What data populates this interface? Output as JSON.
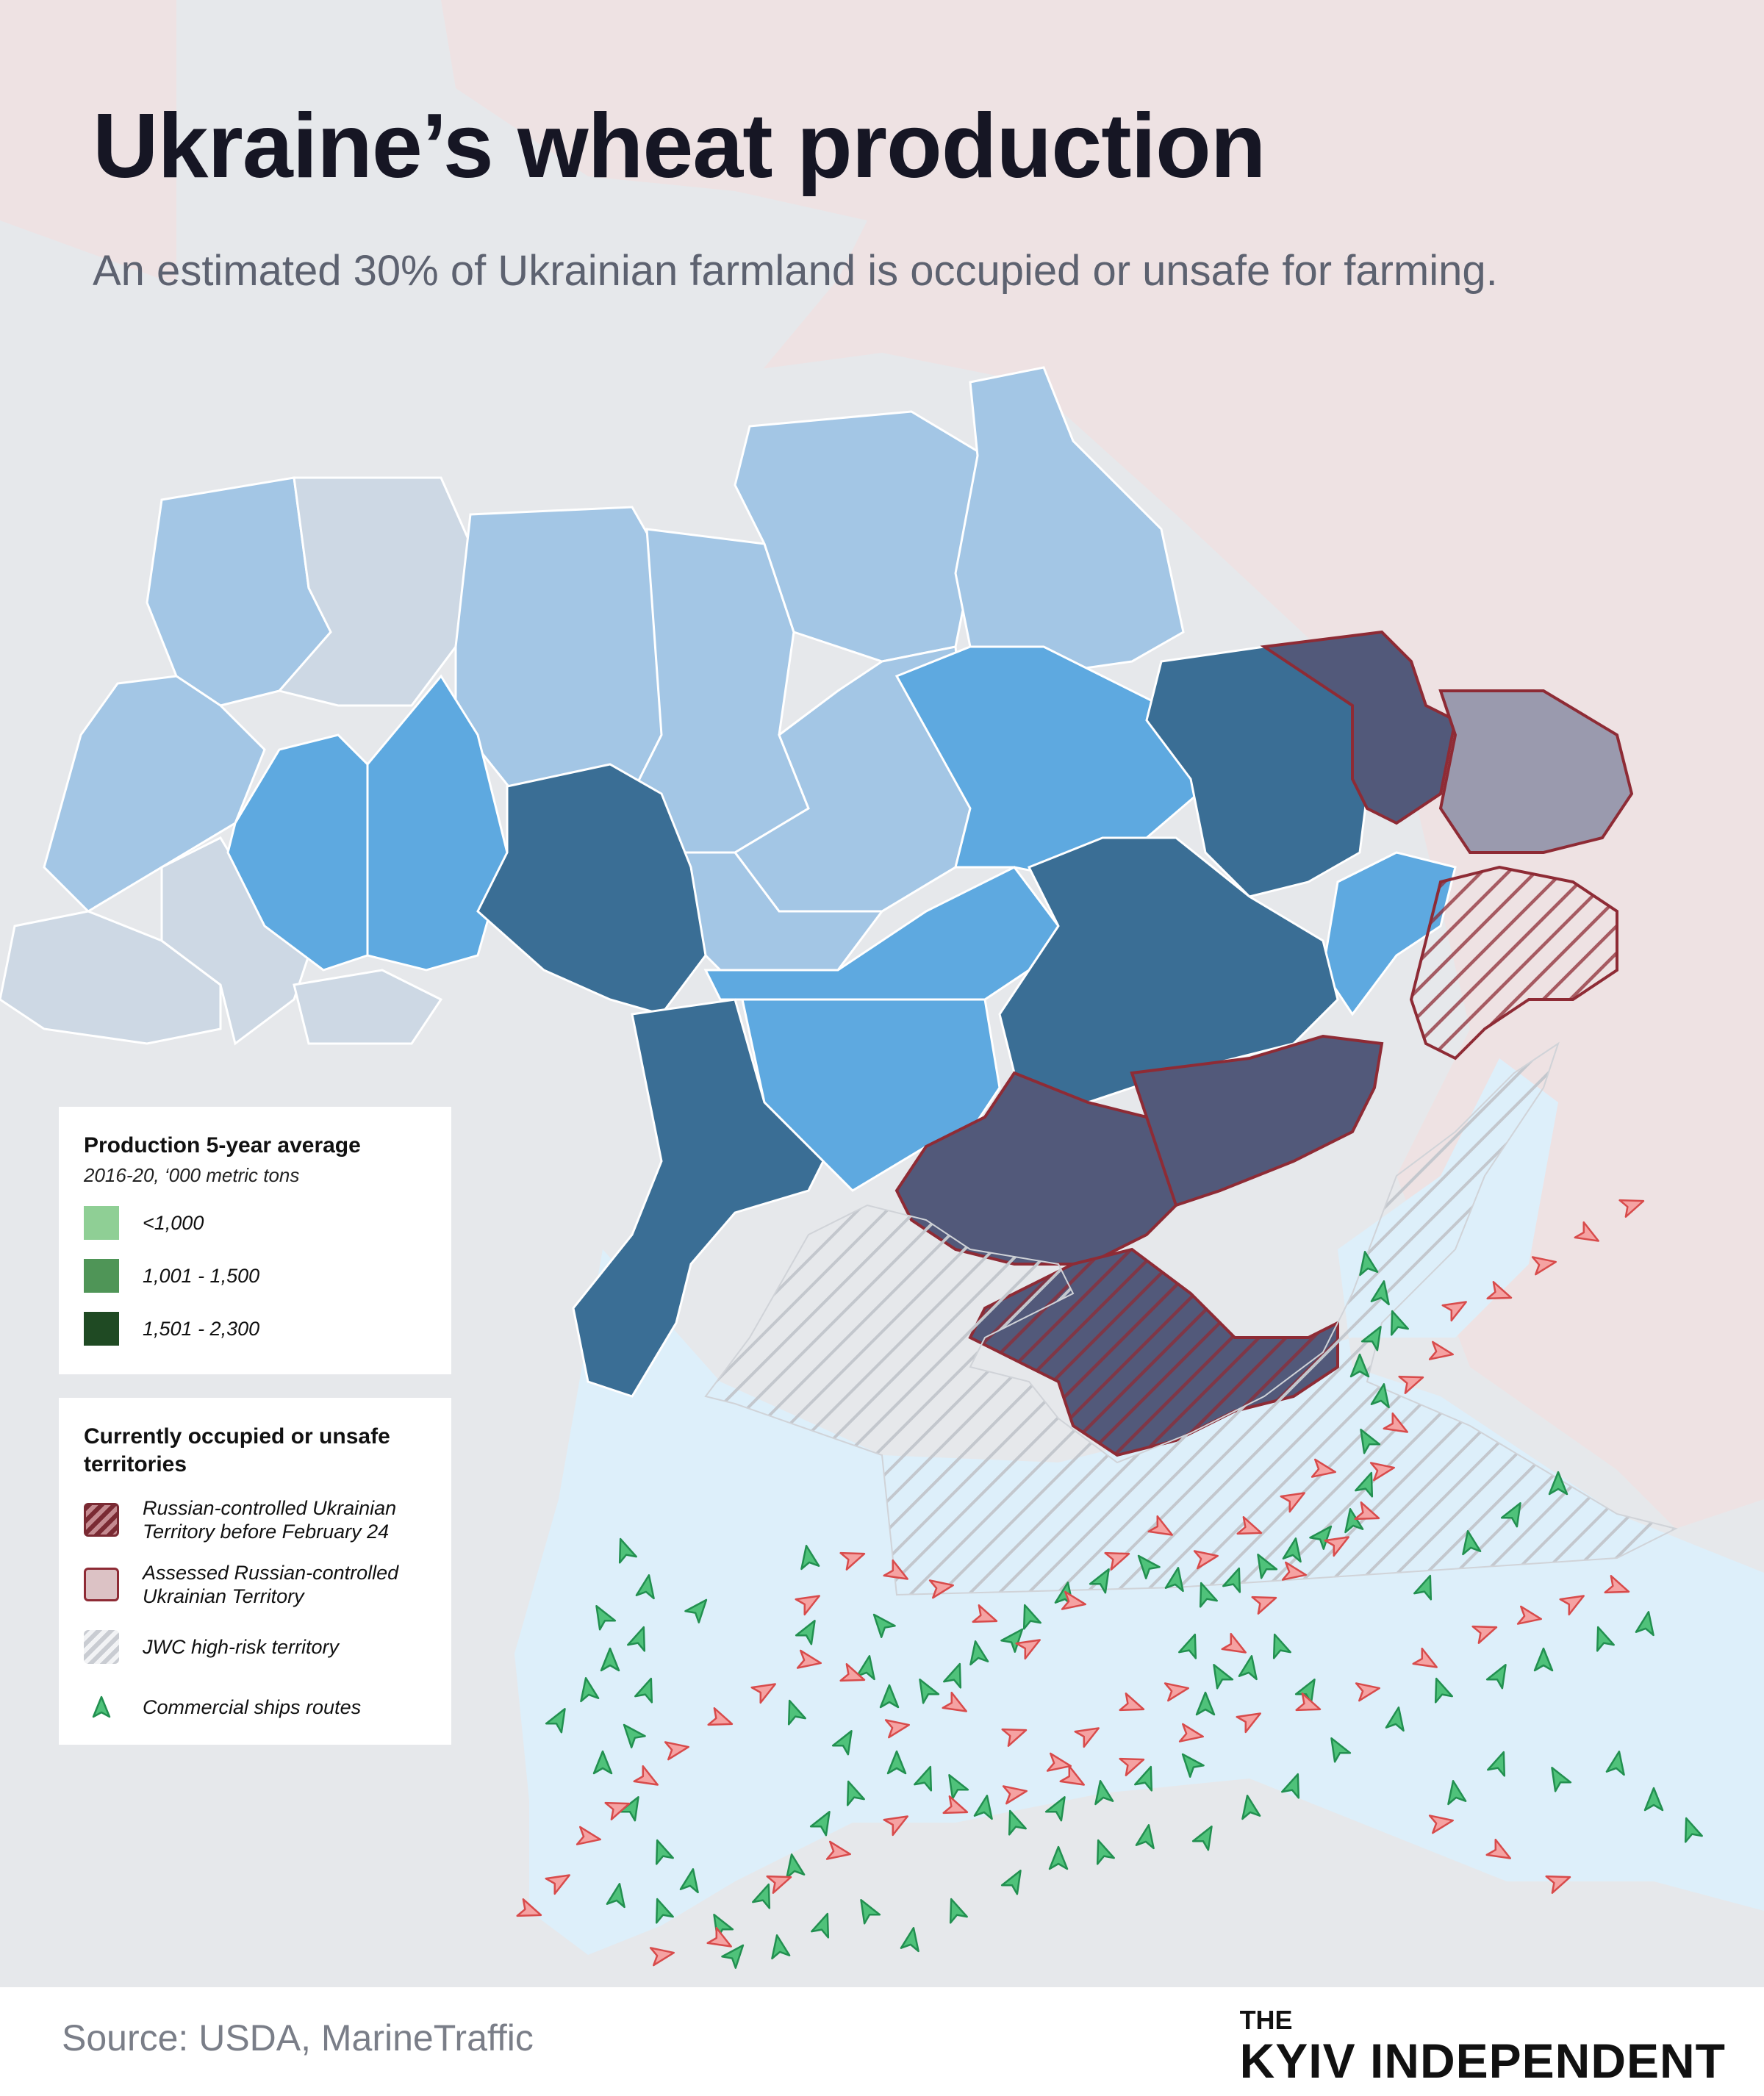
{
  "title": "Ukraine’s wheat production",
  "subtitle": "An estimated 30% of Ukrainian farmland is occupied or unsafe for farming.",
  "colors": {
    "background": "#e6e8eb",
    "russia": "#eee2e3",
    "sea": "#ddeffa",
    "region_light": "#a3c6e5",
    "region_grey": "#cdd8e4",
    "region_mid": "#5ea9e0",
    "region_dark": "#3a6e95",
    "occupied": "#52597a",
    "occupied_border": "#8e2b35",
    "ship_green": "#34b15f",
    "ship_red": "#e86a6a"
  },
  "legend_production": {
    "title": "Production 5-year average",
    "note": "2016-20, ‘000 metric tons",
    "items": [
      {
        "label": "<1,000",
        "color": "#8fcf95"
      },
      {
        "label": "1,001 - 1,500",
        "color": "#4f9557"
      },
      {
        "label": "1,501 - 2,300",
        "color": "#1f4a23"
      }
    ]
  },
  "legend_territory": {
    "title": "Currently occupied or unsafe territories",
    "items": [
      {
        "label": "Russian-controlled Ukrainian Territory before February 24",
        "icon": "hatched-red-swatch"
      },
      {
        "label": "Assessed Russian-controlled Ukrainian Territory",
        "icon": "pink-swatch"
      },
      {
        "label": "JWC high-risk territory",
        "icon": "grey-hatched-swatch"
      },
      {
        "label": "Commercial ships routes",
        "icon": "ship-triangle-icon"
      }
    ]
  },
  "footer": {
    "source": "Source: USDA, MarineTraffic",
    "brand_top": "THE",
    "brand_name": "KYIV INDEPENDENT"
  }
}
